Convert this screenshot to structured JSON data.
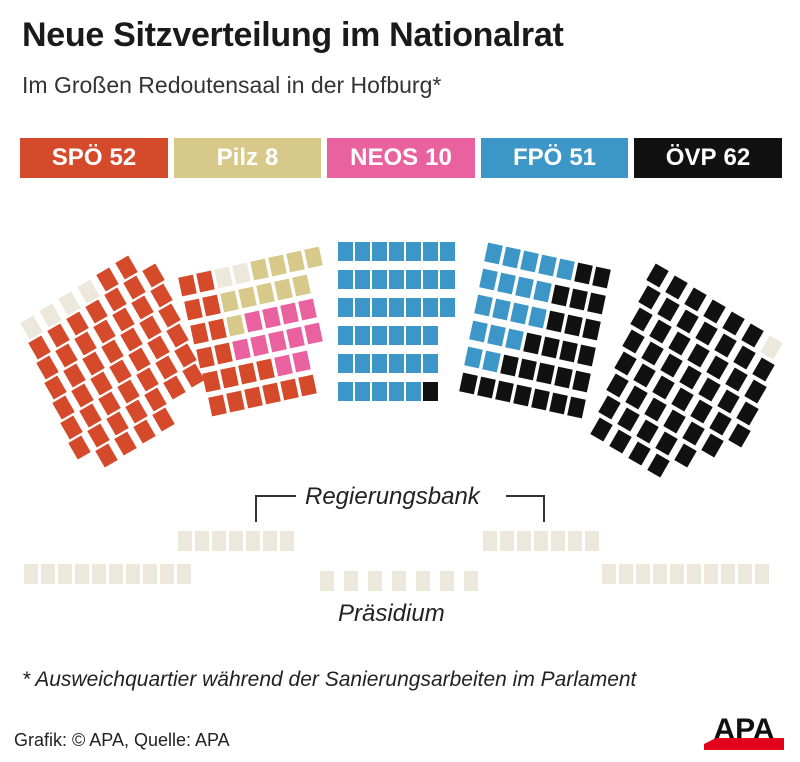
{
  "header": {
    "title": "Neue Sitzverteilung im Nationalrat",
    "subtitle": "Im Großen Redoutensaal in der Hofburg*"
  },
  "parties": [
    {
      "name": "SPÖ",
      "seats": 52,
      "color": "#d44a2a"
    },
    {
      "name": "Pilz",
      "seats": 8,
      "color": "#d6c98a"
    },
    {
      "name": "NEOS",
      "seats": 10,
      "color": "#e9629f"
    },
    {
      "name": "FPÖ",
      "seats": 51,
      "color": "#3d96c8"
    },
    {
      "name": "ÖVP",
      "seats": 62,
      "color": "#111111"
    }
  ],
  "colors": {
    "empty_seat": "#ece8dc"
  },
  "labels": {
    "government": "Regierungsbank",
    "presidium": "Präsidium"
  },
  "footnote": "* Ausweichquartier während der Sanierungsarbeiten im Parlament",
  "credit": "Grafik: © APA, Quelle: APA",
  "logo": {
    "text": "APA",
    "accent": "#e3001b"
  }
}
